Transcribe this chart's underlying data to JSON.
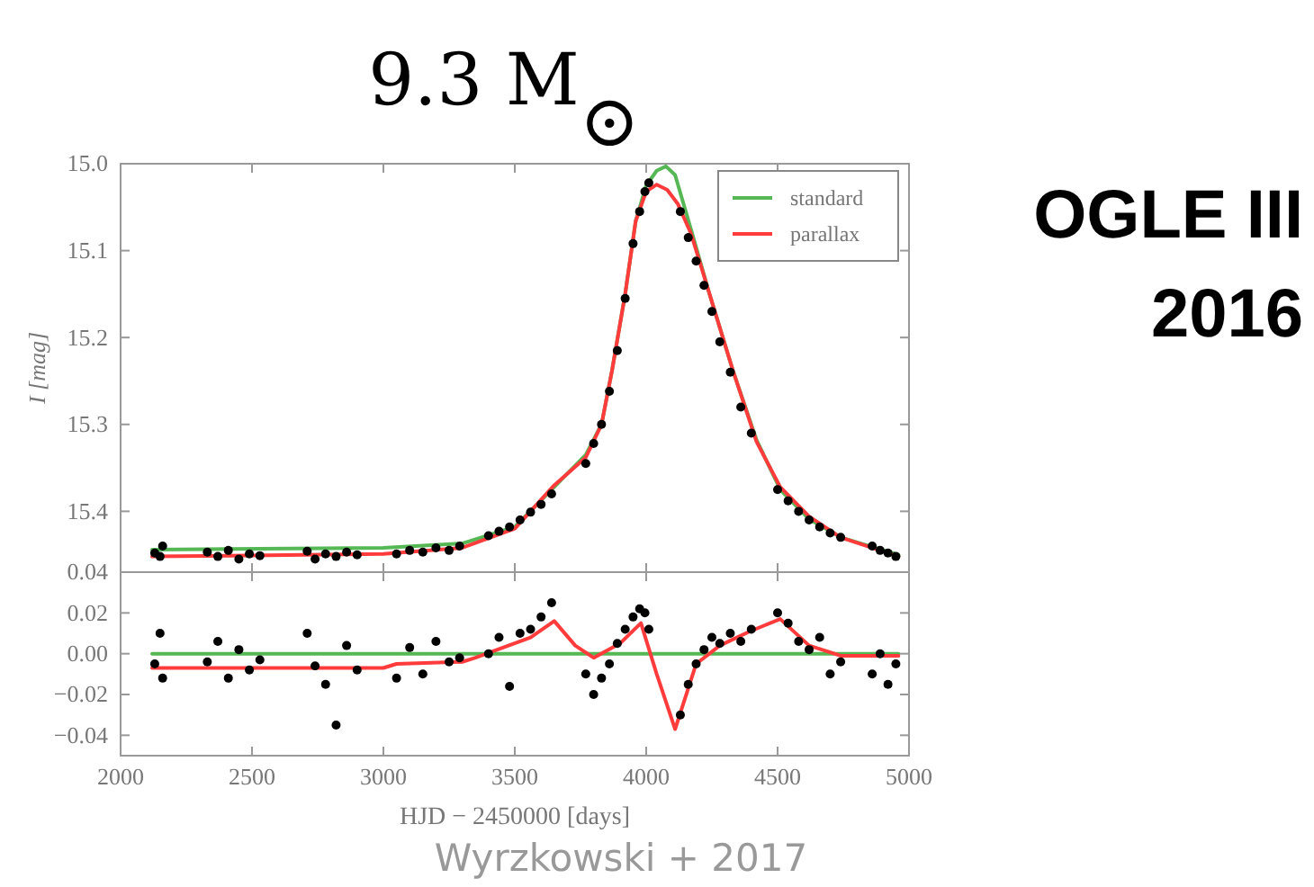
{
  "chart_data": [
    {
      "type": "scatter",
      "title": "9.3 M$_{⊙}$",
      "ylabel": "I [mag]",
      "annotations": [
        "OGLE III",
        "2016"
      ],
      "xlim": [
        2000,
        5000
      ],
      "xticks": [
        2000,
        2500,
        3000,
        3500,
        4000,
        4500,
        5000
      ],
      "ylim": [
        15.47,
        15.0
      ],
      "yticks": [
        {
          "value": 15.0,
          "label": "15.0"
        },
        15.1,
        15.2,
        15.3,
        15.4
      ],
      "tick_labels": "y",
      "grid": false,
      "legend": "top right",
      "series": [
        {
          "type": "line",
          "name": "standard",
          "color": "#55b855",
          "x": [
            2120,
            3000,
            3300,
            3500,
            3650,
            3770,
            3830,
            3870,
            3920,
            3960,
            4000,
            4040,
            4075,
            4110,
            4170,
            4240,
            4330,
            4420,
            4510,
            4620,
            4740,
            4960
          ],
          "values": [
            15.444,
            15.442,
            15.437,
            15.418,
            15.372,
            15.335,
            15.3,
            15.238,
            15.15,
            15.066,
            15.025,
            15.008,
            15.003,
            15.013,
            15.075,
            15.149,
            15.238,
            15.318,
            15.375,
            15.409,
            15.43,
            15.45
          ]
        },
        {
          "type": "line",
          "name": "parallax",
          "color": "#ff3b3b",
          "x": [
            2120,
            3000,
            3300,
            3500,
            3650,
            3770,
            3830,
            3870,
            3920,
            3960,
            4000,
            4040,
            4080,
            4120,
            4170,
            4240,
            4330,
            4420,
            4510,
            4620,
            4740,
            4960
          ],
          "values": [
            15.452,
            15.449,
            15.442,
            15.42,
            15.37,
            15.338,
            15.3,
            15.238,
            15.15,
            15.066,
            15.032,
            15.024,
            15.03,
            15.046,
            15.08,
            15.149,
            15.238,
            15.32,
            15.372,
            15.406,
            15.43,
            15.452
          ]
        },
        {
          "color": "#000000",
          "marker": "circle",
          "x": [
            2130,
            2150,
            2160,
            2330,
            2370,
            2410,
            2450,
            2490,
            2530,
            2710,
            2740,
            2780,
            2820,
            2860,
            2900,
            3050,
            3100,
            3150,
            3200,
            3250,
            3290,
            3400,
            3440,
            3480,
            3520,
            3560,
            3600,
            3640,
            3770,
            3800,
            3830,
            3860,
            3890,
            3920,
            3950,
            3975,
            3995,
            4010,
            4130,
            4160,
            4190,
            4220,
            4250,
            4280,
            4320,
            4360,
            4400,
            4500,
            4540,
            4580,
            4620,
            4660,
            4700,
            4740,
            4860,
            4890,
            4920,
            4950
          ],
          "values": [
            15.448,
            15.452,
            15.44,
            15.447,
            15.452,
            15.445,
            15.455,
            15.449,
            15.451,
            15.446,
            15.455,
            15.449,
            15.452,
            15.447,
            15.45,
            15.449,
            15.445,
            15.447,
            15.442,
            15.445,
            15.44,
            15.428,
            15.423,
            15.418,
            15.41,
            15.401,
            15.392,
            15.38,
            15.345,
            15.322,
            15.3,
            15.262,
            15.215,
            15.155,
            15.092,
            15.055,
            15.032,
            15.022,
            15.055,
            15.085,
            15.112,
            15.14,
            15.17,
            15.205,
            15.24,
            15.28,
            15.31,
            15.375,
            15.388,
            15.4,
            15.41,
            15.418,
            15.425,
            15.43,
            15.44,
            15.445,
            15.448,
            15.452
          ]
        }
      ]
    },
    {
      "type": "scatter",
      "xlabel": "HJD − 2450000 [days]",
      "annotations": [
        "Wyrzkowski + 2017"
      ],
      "xlim": [
        2000,
        5000
      ],
      "xticks": [
        2000,
        2500,
        3000,
        3500,
        4000,
        4500,
        5000
      ],
      "ylim": [
        -0.05,
        0.04
      ],
      "yticks": [
        {
          "value": -0.04,
          "label": "−0.04"
        },
        {
          "value": -0.02,
          "label": "−0.02"
        },
        {
          "value": 0,
          "label": "0.00"
        },
        {
          "value": 0.02,
          "label": "0.02"
        },
        {
          "value": 0.04,
          "label": "0.04"
        }
      ],
      "grid": false,
      "series": [
        {
          "type": "line",
          "color": "#55b855",
          "x": [
            2120,
            4960
          ],
          "values": [
            0,
            0
          ]
        },
        {
          "type": "line",
          "color": "#ff3b3b",
          "x": [
            2120,
            3000,
            3050,
            3300,
            3350,
            3560,
            3650,
            3730,
            3800,
            3900,
            3980,
            4040,
            4110,
            4190,
            4280,
            4395,
            4510,
            4620,
            4740,
            4960
          ],
          "values": [
            -0.007,
            -0.007,
            -0.005,
            -0.004,
            -0.002,
            0.008,
            0.016,
            0.004,
            -0.002,
            0.005,
            0.015,
            -0.01,
            -0.037,
            -0.005,
            0.004,
            0.011,
            0.017,
            0.004,
            -0.001,
            -0.001
          ]
        },
        {
          "color": "#000000",
          "marker": "circle",
          "x": [
            2130,
            2150,
            2160,
            2330,
            2370,
            2410,
            2450,
            2490,
            2530,
            2710,
            2740,
            2780,
            2820,
            2860,
            2900,
            3050,
            3100,
            3150,
            3200,
            3250,
            3290,
            3400,
            3440,
            3480,
            3520,
            3560,
            3600,
            3640,
            3770,
            3800,
            3830,
            3860,
            3890,
            3920,
            3950,
            3975,
            3995,
            4010,
            4130,
            4160,
            4190,
            4220,
            4250,
            4280,
            4320,
            4360,
            4400,
            4500,
            4540,
            4580,
            4620,
            4660,
            4700,
            4740,
            4860,
            4890,
            4920,
            4950
          ],
          "values": [
            -0.005,
            0.01,
            -0.012,
            -0.004,
            0.006,
            -0.012,
            0.002,
            -0.008,
            -0.003,
            0.01,
            -0.006,
            -0.015,
            -0.035,
            0.004,
            -0.008,
            -0.012,
            0.003,
            -0.01,
            0.006,
            -0.004,
            -0.002,
            0.0,
            0.008,
            -0.016,
            0.01,
            0.012,
            0.018,
            0.025,
            -0.01,
            -0.02,
            -0.012,
            -0.005,
            0.005,
            0.012,
            0.018,
            0.022,
            0.02,
            0.012,
            -0.03,
            -0.015,
            -0.005,
            0.002,
            0.008,
            0.005,
            0.01,
            0.006,
            0.012,
            0.02,
            0.015,
            0.006,
            0.002,
            0.008,
            -0.01,
            -0.004,
            -0.01,
            0.0,
            -0.015,
            -0.005
          ]
        }
      ]
    }
  ]
}
